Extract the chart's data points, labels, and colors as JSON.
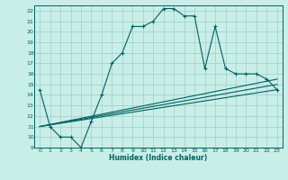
{
  "xlabel": "Humidex (Indice chaleur)",
  "ylabel": "",
  "bg_color": "#c8eee8",
  "grid_color": "#a0ccc8",
  "line_color": "#006060",
  "xlim": [
    -0.5,
    23.5
  ],
  "ylim": [
    9,
    22.5
  ],
  "xticks": [
    0,
    1,
    2,
    3,
    4,
    5,
    6,
    7,
    8,
    9,
    10,
    11,
    12,
    13,
    14,
    15,
    16,
    17,
    18,
    19,
    20,
    21,
    22,
    23
  ],
  "yticks": [
    9,
    10,
    11,
    12,
    13,
    14,
    15,
    16,
    17,
    18,
    19,
    20,
    21,
    22
  ],
  "series1_x": [
    0,
    1,
    2,
    3,
    4,
    5,
    6,
    7,
    8,
    9,
    10,
    11,
    12,
    13,
    14,
    15,
    16,
    17,
    18,
    19,
    20,
    21,
    22,
    23
  ],
  "series1_y": [
    14.5,
    11.0,
    10.0,
    10.0,
    9.0,
    11.5,
    14.0,
    17.0,
    18.0,
    20.5,
    20.5,
    21.0,
    22.2,
    22.2,
    21.5,
    21.5,
    16.5,
    20.5,
    16.5,
    16.0,
    16.0,
    16.0,
    15.5,
    14.5
  ],
  "series2_x": [
    0,
    23
  ],
  "series2_y": [
    11.0,
    15.5
  ],
  "series3_x": [
    0,
    23
  ],
  "series3_y": [
    11.0,
    15.0
  ],
  "series4_x": [
    0,
    23
  ],
  "series4_y": [
    11.0,
    14.5
  ]
}
